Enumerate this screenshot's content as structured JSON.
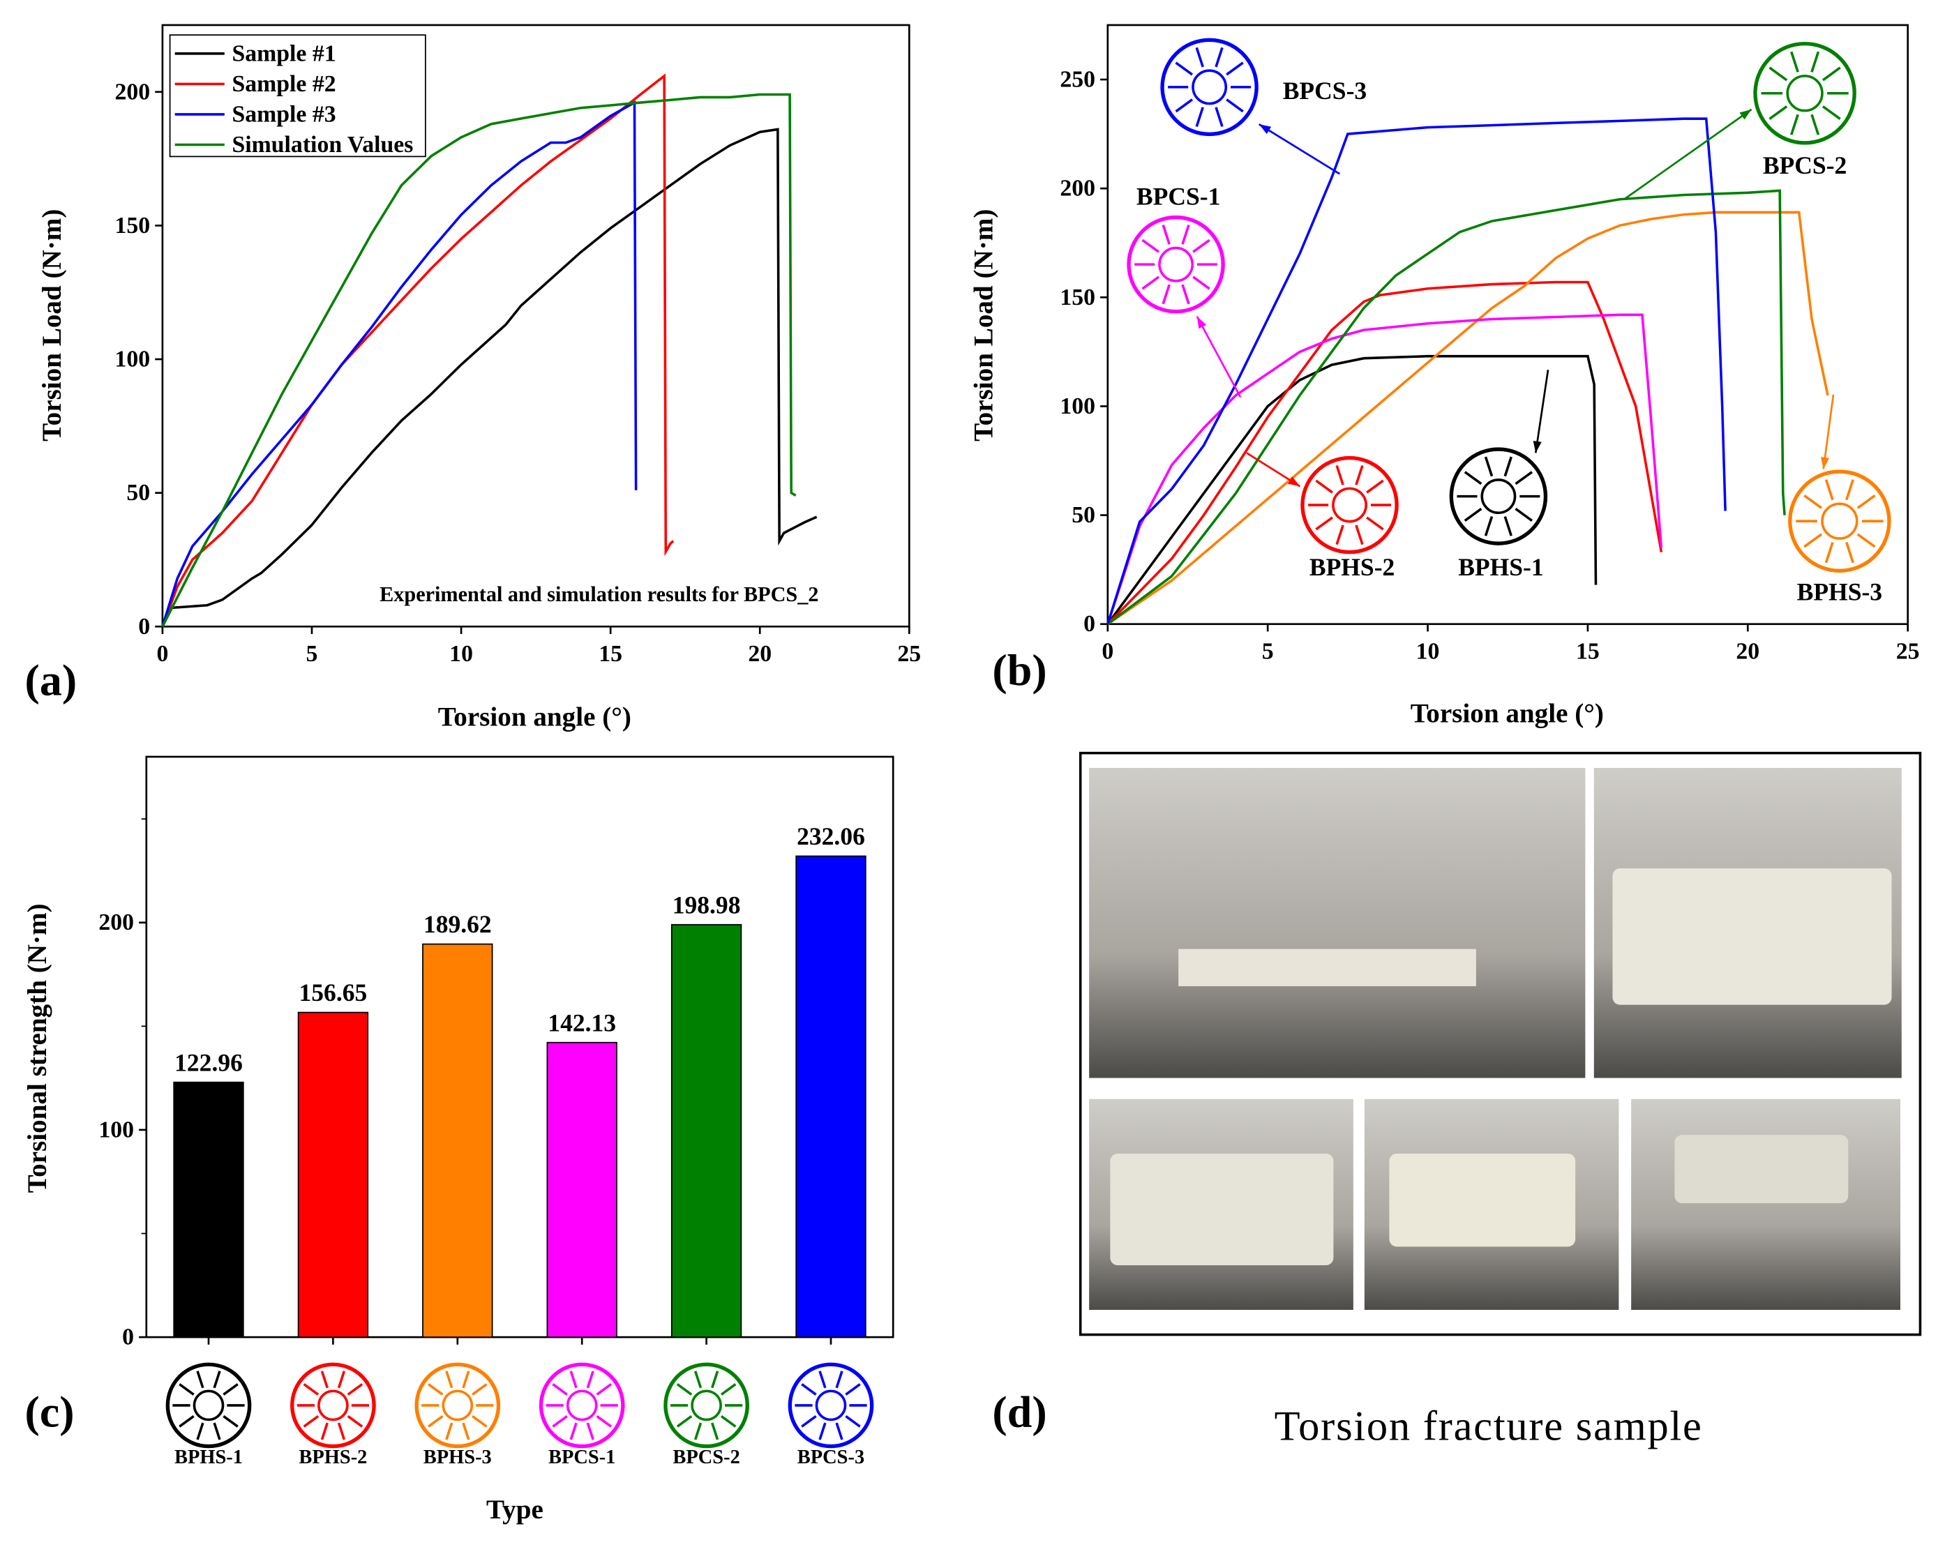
{
  "chart_data": [
    {
      "type": "line",
      "panel_label": "(a)",
      "x_label": "Torsion angle (°)",
      "y_label": "Torsion Load (N·m)",
      "annotation": "Experimental and simulation results for BPCS_2",
      "xlim": [
        0,
        25
      ],
      "ylim": [
        0,
        225
      ],
      "xticks": [
        0,
        5,
        10,
        15,
        20,
        25
      ],
      "yticks": [
        0,
        50,
        100,
        150,
        200
      ],
      "legend": "upper left",
      "series": [
        {
          "name": "Sample #1",
          "color": "#000000",
          "x": [
            0,
            0.3,
            1.5,
            2,
            3,
            3.3,
            4,
            5,
            6,
            7,
            8,
            9,
            10,
            11,
            11.5,
            12,
            13,
            14,
            15,
            16,
            17,
            18,
            19,
            20,
            20.6,
            20.65,
            20.8,
            21.5,
            21.9
          ],
          "values": [
            0,
            7,
            8,
            10,
            18,
            20,
            27,
            38,
            52,
            65,
            77,
            87,
            98,
            108,
            113,
            120,
            130,
            140,
            149,
            157,
            165,
            173,
            180,
            185,
            186,
            32,
            35,
            39,
            41
          ]
        },
        {
          "name": "Sample #2",
          "color": "#ff0000",
          "x": [
            0,
            0.5,
            1,
            2,
            3,
            4,
            5,
            6,
            7,
            8,
            9,
            10,
            11,
            12,
            13,
            14,
            15,
            16,
            16.8,
            16.85,
            17,
            17.1
          ],
          "values": [
            0,
            15,
            25,
            35,
            47,
            65,
            83,
            98,
            110,
            122,
            134,
            145,
            155,
            165,
            174,
            182,
            190,
            199,
            206,
            28,
            31,
            32
          ]
        },
        {
          "name": "Sample #3",
          "color": "#0000ff",
          "x": [
            0,
            0.5,
            1,
            2,
            3,
            4,
            5,
            6,
            7,
            8,
            9,
            10,
            11,
            12,
            13,
            13.5,
            14,
            15,
            15.8,
            15.85
          ],
          "values": [
            0,
            18,
            30,
            43,
            57,
            70,
            83,
            98,
            112,
            127,
            141,
            154,
            165,
            174,
            181,
            181,
            183,
            191,
            196,
            51
          ]
        },
        {
          "name": "Simulation Values",
          "color": "#008000",
          "x": [
            0,
            1,
            2,
            3,
            4,
            5,
            6,
            7,
            8,
            9,
            10,
            11,
            12,
            13,
            14,
            15,
            16,
            17,
            18,
            19,
            20,
            21,
            21.05,
            21.2
          ],
          "values": [
            0,
            22,
            43,
            65,
            87,
            107,
            127,
            147,
            165,
            176,
            183,
            188,
            190,
            192,
            194,
            195,
            196,
            197,
            198,
            198,
            199,
            199,
            50,
            49
          ]
        }
      ]
    },
    {
      "type": "line",
      "panel_label": "(b)",
      "x_label": "Torsion angle (°)",
      "y_label": "Torsion Load (N·m)",
      "xlim": [
        0,
        25
      ],
      "ylim": [
        0,
        275
      ],
      "xticks": [
        0,
        5,
        10,
        15,
        20,
        25
      ],
      "yticks": [
        0,
        50,
        100,
        150,
        200,
        250
      ],
      "series": [
        {
          "name": "BPHS-1",
          "color": "#000000",
          "x": [
            0,
            1,
            2,
            3,
            4,
            5,
            6,
            7,
            8,
            10,
            13,
            15,
            15.2,
            15.25
          ],
          "values": [
            0,
            20,
            40,
            60,
            80,
            100,
            112,
            119,
            122,
            123,
            123,
            123,
            110,
            18
          ]
        },
        {
          "name": "BPHS-2",
          "color": "#ff0000",
          "x": [
            0,
            1,
            2,
            3,
            4,
            5,
            6,
            7,
            8,
            8.5,
            10,
            12,
            14,
            15,
            15.5,
            16.5,
            17.3
          ],
          "values": [
            0,
            15,
            30,
            50,
            72,
            95,
            115,
            135,
            148,
            151,
            154,
            156,
            157,
            157,
            140,
            100,
            33
          ]
        },
        {
          "name": "BPHS-3",
          "color": "#ff7f00",
          "x": [
            0,
            2,
            4,
            6,
            8,
            10,
            12,
            13,
            14,
            15,
            16,
            17,
            18,
            19,
            20,
            21,
            21.6,
            22,
            22.5
          ],
          "values": [
            0,
            20,
            45,
            70,
            95,
            120,
            145,
            155,
            168,
            177,
            183,
            186,
            188,
            189,
            189,
            189,
            189,
            140,
            105
          ]
        },
        {
          "name": "BPCS-1",
          "color": "#ff00ff",
          "x": [
            0,
            1,
            2,
            3,
            4,
            5,
            6,
            7,
            8,
            10,
            12,
            14,
            16,
            16.7,
            17,
            17.3
          ],
          "values": [
            0,
            45,
            73,
            90,
            105,
            115,
            125,
            131,
            135,
            138,
            140,
            141,
            142,
            142,
            90,
            35
          ]
        },
        {
          "name": "BPCS-2",
          "color": "#008000",
          "x": [
            0,
            2,
            4,
            6,
            7,
            8,
            9,
            10,
            11,
            12,
            14,
            16,
            18,
            20,
            21,
            21.1,
            21.15
          ],
          "values": [
            0,
            22,
            60,
            105,
            125,
            145,
            160,
            170,
            180,
            185,
            190,
            195,
            197,
            198,
            199,
            60,
            50
          ]
        },
        {
          "name": "BPCS-3",
          "color": "#0000ff",
          "x": [
            0,
            1,
            2,
            3,
            4,
            5,
            6,
            7,
            7.5,
            10,
            12,
            14,
            16,
            18,
            18.7,
            19,
            19.2,
            19.3
          ],
          "values": [
            0,
            47,
            62,
            82,
            110,
            140,
            170,
            205,
            225,
            228,
            229,
            230,
            231,
            232,
            232,
            180,
            100,
            52
          ]
        }
      ]
    },
    {
      "type": "bar",
      "panel_label": "(c)",
      "x_label": "Type",
      "y_label": "Torsional strength (N·m)",
      "ylim": [
        0,
        280
      ],
      "yticks": [
        0,
        100,
        200
      ],
      "minor_yticks": [
        50,
        150,
        250
      ],
      "categories": [
        "BPHS-1",
        "BPHS-2",
        "BPHS-3",
        "BPCS-1",
        "BPCS-2",
        "BPCS-3"
      ],
      "values": [
        122.96,
        156.65,
        189.62,
        142.13,
        198.98,
        232.06
      ],
      "colors": [
        "#000000",
        "#ff0000",
        "#ff7f00",
        "#ff00ff",
        "#008000",
        "#0000ff"
      ]
    }
  ],
  "photo_panel": {
    "panel_label": "(d)",
    "caption": "Torsion fracture sample"
  }
}
